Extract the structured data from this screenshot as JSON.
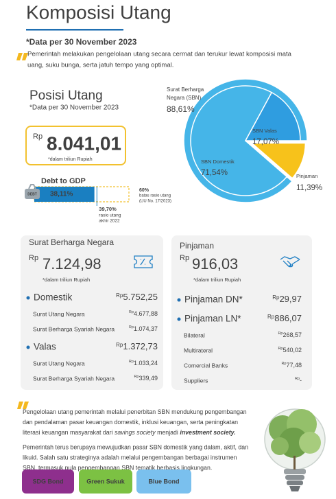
{
  "title": "Komposisi Utang",
  "date_note": "*Data per 30 November 2023",
  "intro": [
    "Pemerintah melakukan pengelolaan utang secara cermat dan terukur lewat komposisi mata",
    "uang, suku bunga, serta jatuh tempo yang optimal."
  ],
  "position": {
    "title": "Posisi Utang",
    "date_note": "*Data per 30 November 2023",
    "currency": "Rp",
    "amount": "8.041,01",
    "unit_note": "*dalam triliun Rupiah"
  },
  "debt_to_gdp": {
    "label": "Debt to GDP",
    "icon_text": "DEBT",
    "value": 38.11,
    "value_label": "38,11%",
    "limit": {
      "value": 60,
      "label": "60%",
      "note": [
        "batas rasio utang",
        "(UU No. 17/2023)"
      ]
    },
    "previous": {
      "value": 39.7,
      "label": "39,70%",
      "note": [
        "rasio utang",
        "akhir 2022"
      ]
    }
  },
  "composition": {
    "type": "pie",
    "sbn": {
      "name": [
        "Surat Berharga",
        "Negara (SBN)"
      ],
      "value": 88.61,
      "value_label": "88,61%",
      "color": "#45b5e8"
    },
    "slices": [
      {
        "name": "Pinjaman",
        "value": 11.39,
        "value_label": "11,39%",
        "color": "#f7c21b"
      },
      {
        "name": "SBN Domestik",
        "value": 71.54,
        "value_label": "71,54%",
        "color": "#45b5e8"
      },
      {
        "name": "SBN Valas",
        "value": 17.07,
        "value_label": "17,07%",
        "color": "#2f9de0"
      }
    ]
  },
  "sbn_card": {
    "title": "Surat Berharga Negara",
    "currency": "Rp",
    "amount": "7.124,98",
    "unit_note": "*dalam triliun Rupiah",
    "groups": [
      {
        "name": "Domestik",
        "currency": "Rp",
        "amount": "5.752,25",
        "items": [
          {
            "name": "Surat Utang Negara",
            "currency": "Rp",
            "amount": "4.677,88"
          },
          {
            "name": "Surat Berharga Syariah Negara",
            "currency": "Rp",
            "amount": "1.074,37"
          }
        ]
      },
      {
        "name": "Valas",
        "currency": "Rp",
        "amount": "1.372,73",
        "items": [
          {
            "name": "Surat Utang Negara",
            "currency": "Rp",
            "amount": "1.033,24"
          },
          {
            "name": "Surat Berharga Syariah Negara",
            "currency": "Rp",
            "amount": "339,49"
          }
        ]
      }
    ]
  },
  "loan_card": {
    "title": "Pinjaman",
    "currency": "Rp",
    "amount": "916,03",
    "unit_note": "*dalam triliun Rupiah",
    "groups": [
      {
        "name": "Pinjaman DN*",
        "currency": "Rp",
        "amount": "29,97",
        "items": []
      },
      {
        "name": "Pinjaman LN*",
        "currency": "Rp",
        "amount": "886,07",
        "items": [
          {
            "name": "Bilateral",
            "currency": "Rp",
            "amount": "268,57"
          },
          {
            "name": "Multirateral",
            "currency": "Rp",
            "amount": "540,02"
          },
          {
            "name": "Comercial Banks",
            "currency": "Rp",
            "amount": "77,48"
          },
          {
            "name": "Suppliers",
            "currency": "Rp",
            "amount": "-"
          }
        ]
      }
    ]
  },
  "footer": {
    "paragraph1": [
      [
        {
          "text": "Pengelolaan utang pemerintah melalui penerbitan SBN mendukung pengembangan",
          "style": "normal"
        }
      ],
      [
        {
          "text": "dan pendalaman pasar keuangan domestik, inklusi keuangan, serta peningkatan",
          "style": "normal"
        }
      ],
      [
        {
          "text": "literasi keuangan masyarakat dari ",
          "style": "normal"
        },
        {
          "text": "savings society",
          "style": "italic"
        },
        {
          "text": " menjadi ",
          "style": "normal"
        },
        {
          "text": "investment society.",
          "style": "bold-italic"
        }
      ]
    ],
    "paragraph2": [
      "Pemerintah terus berupaya mewujudkan pasar SBN domestik yang dalam, aktif, dan",
      "likuid. Salah satu strateginya adalah melalui pengembangan berbagai instrumen",
      "SBN, termasuk pula pengembangan SBN tematik berbasis lingkungan."
    ],
    "tags": [
      {
        "label": "SDG Bond",
        "color": "#8e2f8d"
      },
      {
        "label": "Green Sukuk",
        "color": "#7cc143"
      },
      {
        "label": "Blue Bond",
        "color": "#7ac0ee"
      }
    ]
  }
}
